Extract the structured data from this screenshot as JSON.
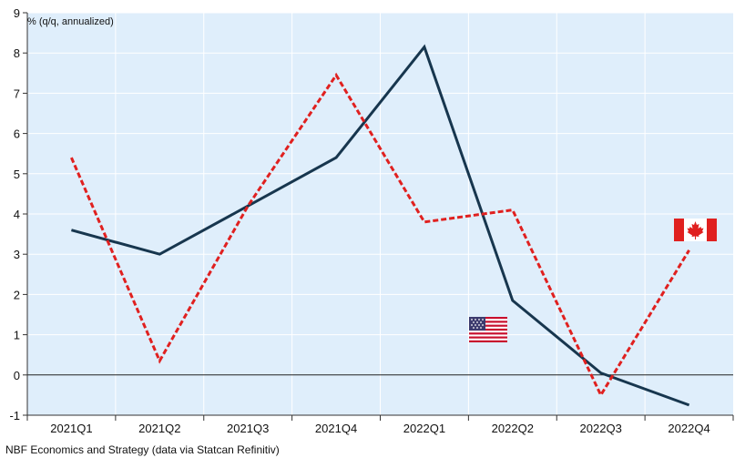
{
  "chart_data": {
    "type": "line",
    "title": "",
    "ylabel": "% (q/q, annualized)",
    "xlabel": "",
    "categories": [
      "2021Q1",
      "2021Q2",
      "2021Q3",
      "2021Q4",
      "2022Q1",
      "2022Q2",
      "2022Q3",
      "2022Q4"
    ],
    "ylim": [
      -1,
      9
    ],
    "yticks": [
      -1,
      0,
      1,
      2,
      3,
      4,
      5,
      6,
      7,
      8,
      9
    ],
    "grid": true,
    "series": [
      {
        "name": "",
        "flag": "us-flag-icon",
        "color": "#17364e",
        "style": "solid",
        "values": [
          3.6,
          3.0,
          4.2,
          5.4,
          8.15,
          1.85,
          0.05,
          -0.75
        ]
      },
      {
        "name": "",
        "flag": "canada-flag-icon",
        "color": "#e0201f",
        "style": "dashed",
        "values": [
          5.4,
          0.35,
          4.2,
          7.45,
          3.8,
          4.1,
          -0.5,
          3.1
        ]
      }
    ]
  },
  "footer": {
    "source": "NBF Economics and Strategy (data via Statcan Refinitiv)"
  },
  "colors": {
    "plot_bg": "#dfeefb",
    "grid": "#ffffff",
    "zero_line": "#222222"
  }
}
